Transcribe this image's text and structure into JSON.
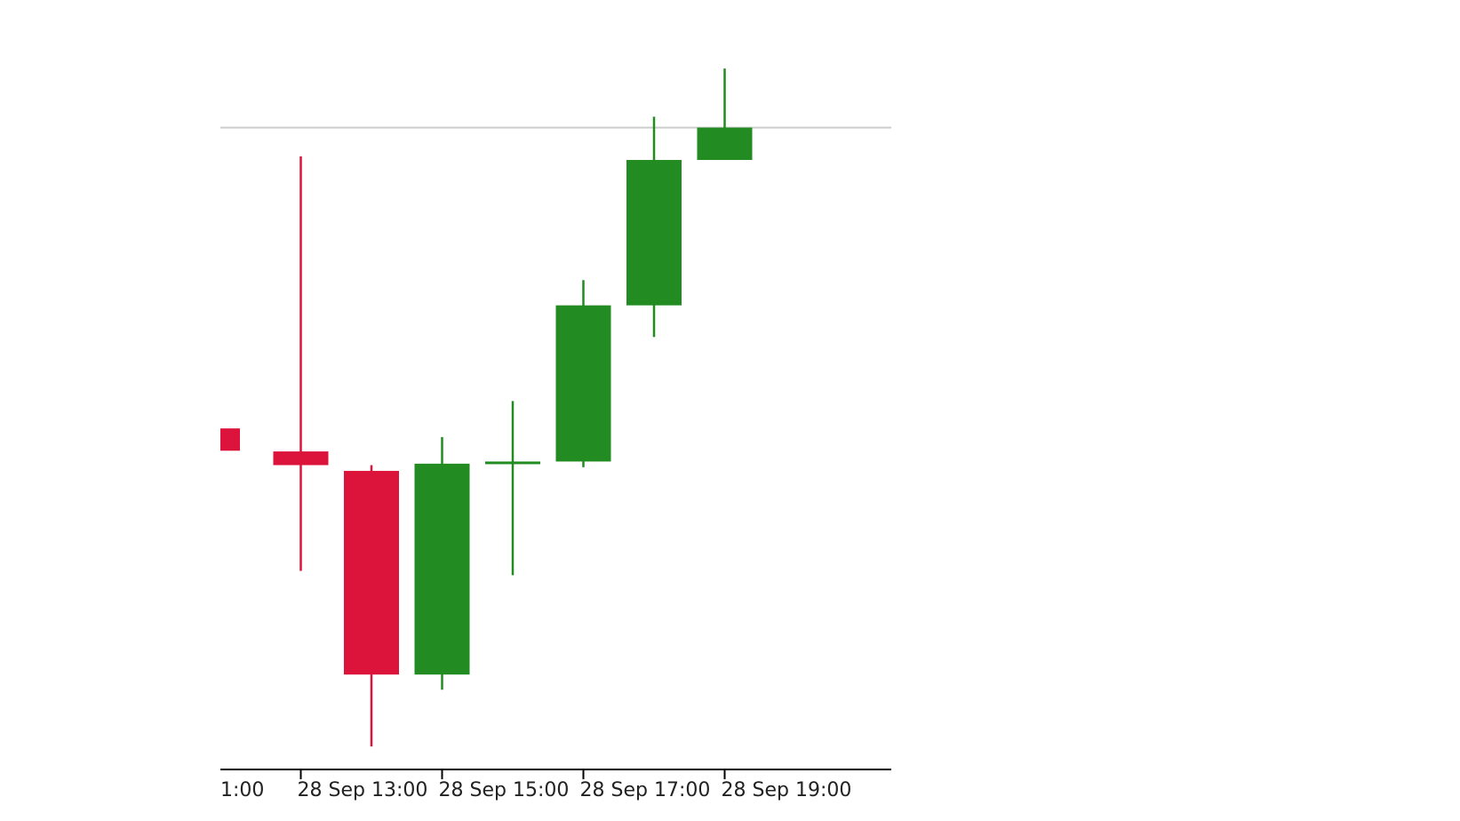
{
  "chart_data": {
    "type": "candlestick",
    "title": "",
    "xlabel": "",
    "ylabel": "",
    "colors": {
      "up": "#228b22",
      "down": "#dc143c",
      "reference_line": "#cccccc",
      "axis": "#000000"
    },
    "ylim": [
      0,
      1
    ],
    "reference_line_value": 0.882,
    "x_tick_labels": [
      "1:00",
      "28 Sep 13:00",
      "28 Sep 15:00",
      "28 Sep 17:00",
      "28 Sep 19:00"
    ],
    "x_tick_slots": [
      -0.9,
      1,
      3,
      5,
      7
    ],
    "grid": false,
    "legend": "none",
    "candles": [
      {
        "slot": 0,
        "open": 0.464,
        "high": 0.464,
        "low": 0.433,
        "close": 0.433,
        "partial": true
      },
      {
        "slot": 1,
        "open": 0.432,
        "high": 0.842,
        "low": 0.266,
        "close": 0.413
      },
      {
        "slot": 2,
        "open": 0.405,
        "high": 0.413,
        "low": 0.022,
        "close": 0.122
      },
      {
        "slot": 3,
        "open": 0.122,
        "high": 0.452,
        "low": 0.101,
        "close": 0.415
      },
      {
        "slot": 4,
        "open": 0.415,
        "high": 0.502,
        "low": 0.26,
        "close": 0.418
      },
      {
        "slot": 5,
        "open": 0.418,
        "high": 0.67,
        "low": 0.41,
        "close": 0.635
      },
      {
        "slot": 6,
        "open": 0.635,
        "high": 0.897,
        "low": 0.591,
        "close": 0.837
      },
      {
        "slot": 7,
        "open": 0.837,
        "high": 0.964,
        "low": 0.837,
        "close": 0.882
      }
    ]
  }
}
